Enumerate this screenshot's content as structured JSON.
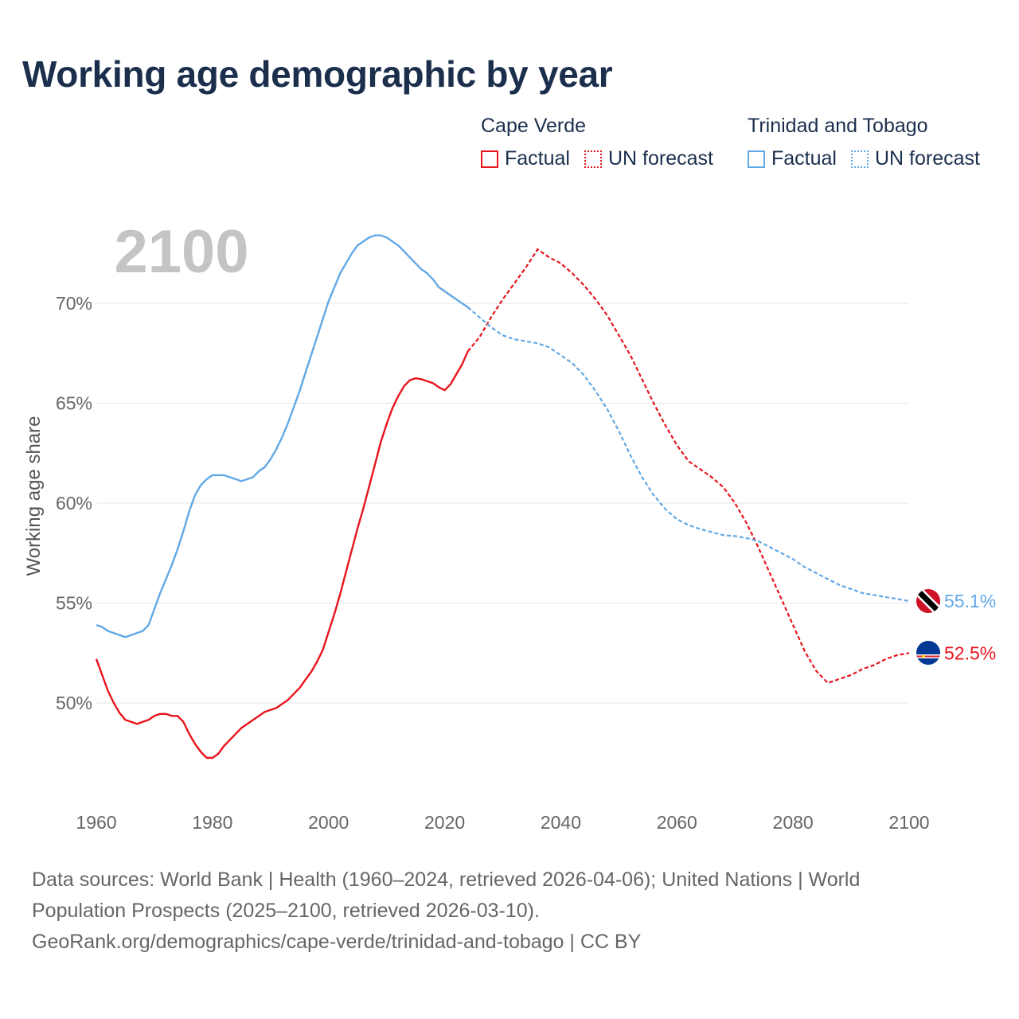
{
  "title": "Working age demographic by year",
  "legend": {
    "groups": [
      {
        "name": "Cape Verde",
        "factual_label": "Factual",
        "forecast_label": "UN forecast",
        "color": "#e8141c"
      },
      {
        "name": "Trinidad and Tobago",
        "factual_label": "Factual",
        "forecast_label": "UN forecast",
        "color": "#62a8e5"
      }
    ]
  },
  "year_label": "2100",
  "footer": {
    "line1": "Data sources: World Bank | Health (1960–2024, retrieved 2026-04-06); United Nations | World",
    "line2": "Population Prospects (2025–2100, retrieved 2026-03-10).",
    "line3": "GeoRank.org/demographics/cape-verde/trinidad-and-tobago | CC BY"
  },
  "chart_data": {
    "type": "line",
    "title": "Working age demographic by year",
    "xlabel": "",
    "ylabel": "Working age share",
    "xlim": [
      1960,
      2100
    ],
    "ylim": [
      46,
      74
    ],
    "x_ticks": [
      "1960",
      "1980",
      "2000",
      "2020",
      "2040",
      "2060",
      "2080",
      "2100"
    ],
    "y_ticks": [
      "50%",
      "55%",
      "60%",
      "65%",
      "70%"
    ],
    "grid": true,
    "factual_range": [
      1960,
      2024
    ],
    "forecast_range": [
      2024,
      2100
    ],
    "series": [
      {
        "name": "Cape Verde",
        "color": "#e8141c",
        "end_label": "52.5%",
        "points": [
          [
            1960,
            52.2
          ],
          [
            1961,
            51.4
          ],
          [
            1962,
            50.6
          ],
          [
            1963,
            50.0
          ],
          [
            1964,
            49.5
          ],
          [
            1965,
            49.15
          ],
          [
            1966,
            49.05
          ],
          [
            1967,
            48.95
          ],
          [
            1968,
            49.05
          ],
          [
            1969,
            49.15
          ],
          [
            1970,
            49.35
          ],
          [
            1971,
            49.45
          ],
          [
            1972,
            49.45
          ],
          [
            1973,
            49.35
          ],
          [
            1974,
            49.35
          ],
          [
            1975,
            49.05
          ],
          [
            1976,
            48.45
          ],
          [
            1977,
            47.95
          ],
          [
            1978,
            47.55
          ],
          [
            1979,
            47.25
          ],
          [
            1980,
            47.25
          ],
          [
            1981,
            47.45
          ],
          [
            1982,
            47.85
          ],
          [
            1983,
            48.15
          ],
          [
            1984,
            48.45
          ],
          [
            1985,
            48.75
          ],
          [
            1986,
            48.95
          ],
          [
            1987,
            49.15
          ],
          [
            1988,
            49.35
          ],
          [
            1989,
            49.55
          ],
          [
            1990,
            49.65
          ],
          [
            1991,
            49.75
          ],
          [
            1992,
            49.95
          ],
          [
            1993,
            50.15
          ],
          [
            1994,
            50.45
          ],
          [
            1995,
            50.75
          ],
          [
            1996,
            51.15
          ],
          [
            1997,
            51.55
          ],
          [
            1998,
            52.05
          ],
          [
            1999,
            52.65
          ],
          [
            2000,
            53.55
          ],
          [
            2001,
            54.45
          ],
          [
            2002,
            55.45
          ],
          [
            2003,
            56.55
          ],
          [
            2004,
            57.65
          ],
          [
            2005,
            58.75
          ],
          [
            2006,
            59.75
          ],
          [
            2007,
            60.85
          ],
          [
            2008,
            61.95
          ],
          [
            2009,
            63.05
          ],
          [
            2010,
            63.95
          ],
          [
            2011,
            64.75
          ],
          [
            2012,
            65.35
          ],
          [
            2013,
            65.85
          ],
          [
            2014,
            66.15
          ],
          [
            2015,
            66.25
          ],
          [
            2016,
            66.2
          ],
          [
            2017,
            66.1
          ],
          [
            2018,
            66.0
          ],
          [
            2019,
            65.8
          ],
          [
            2020,
            65.65
          ],
          [
            2021,
            65.95
          ],
          [
            2022,
            66.45
          ],
          [
            2023,
            66.95
          ],
          [
            2024,
            67.6
          ],
          [
            2026,
            68.3
          ],
          [
            2028,
            69.3
          ],
          [
            2030,
            70.2
          ],
          [
            2032,
            71.0
          ],
          [
            2034,
            71.8
          ],
          [
            2036,
            72.7
          ],
          [
            2038,
            72.3
          ],
          [
            2040,
            72.0
          ],
          [
            2042,
            71.5
          ],
          [
            2044,
            70.9
          ],
          [
            2046,
            70.2
          ],
          [
            2048,
            69.4
          ],
          [
            2050,
            68.4
          ],
          [
            2052,
            67.4
          ],
          [
            2054,
            66.2
          ],
          [
            2056,
            65.0
          ],
          [
            2058,
            63.9
          ],
          [
            2060,
            62.9
          ],
          [
            2062,
            62.1
          ],
          [
            2064,
            61.7
          ],
          [
            2066,
            61.3
          ],
          [
            2068,
            60.8
          ],
          [
            2070,
            60.0
          ],
          [
            2072,
            59.0
          ],
          [
            2074,
            57.8
          ],
          [
            2076,
            56.5
          ],
          [
            2078,
            55.2
          ],
          [
            2080,
            53.9
          ],
          [
            2082,
            52.6
          ],
          [
            2084,
            51.6
          ],
          [
            2086,
            51.0
          ],
          [
            2088,
            51.2
          ],
          [
            2090,
            51.4
          ],
          [
            2092,
            51.7
          ],
          [
            2094,
            51.9
          ],
          [
            2096,
            52.2
          ],
          [
            2098,
            52.4
          ],
          [
            2100,
            52.5
          ]
        ]
      },
      {
        "name": "Trinidad and Tobago",
        "color": "#62a8e5",
        "end_label": "55.1%",
        "points": [
          [
            1960,
            53.9
          ],
          [
            1961,
            53.8
          ],
          [
            1962,
            53.6
          ],
          [
            1963,
            53.5
          ],
          [
            1964,
            53.4
          ],
          [
            1965,
            53.3
          ],
          [
            1966,
            53.4
          ],
          [
            1967,
            53.5
          ],
          [
            1968,
            53.6
          ],
          [
            1969,
            53.9
          ],
          [
            1970,
            54.7
          ],
          [
            1971,
            55.5
          ],
          [
            1972,
            56.2
          ],
          [
            1973,
            56.9
          ],
          [
            1974,
            57.7
          ],
          [
            1975,
            58.6
          ],
          [
            1976,
            59.6
          ],
          [
            1977,
            60.4
          ],
          [
            1978,
            60.9
          ],
          [
            1979,
            61.2
          ],
          [
            1980,
            61.4
          ],
          [
            1981,
            61.4
          ],
          [
            1982,
            61.4
          ],
          [
            1983,
            61.3
          ],
          [
            1984,
            61.2
          ],
          [
            1985,
            61.1
          ],
          [
            1986,
            61.2
          ],
          [
            1987,
            61.3
          ],
          [
            1988,
            61.6
          ],
          [
            1989,
            61.8
          ],
          [
            1990,
            62.2
          ],
          [
            1991,
            62.7
          ],
          [
            1992,
            63.3
          ],
          [
            1993,
            64.0
          ],
          [
            1994,
            64.8
          ],
          [
            1995,
            65.6
          ],
          [
            1996,
            66.5
          ],
          [
            1997,
            67.4
          ],
          [
            1998,
            68.3
          ],
          [
            1999,
            69.2
          ],
          [
            2000,
            70.1
          ],
          [
            2001,
            70.8
          ],
          [
            2002,
            71.5
          ],
          [
            2003,
            72.0
          ],
          [
            2004,
            72.5
          ],
          [
            2005,
            72.9
          ],
          [
            2006,
            73.1
          ],
          [
            2007,
            73.3
          ],
          [
            2008,
            73.4
          ],
          [
            2009,
            73.4
          ],
          [
            2010,
            73.3
          ],
          [
            2011,
            73.1
          ],
          [
            2012,
            72.9
          ],
          [
            2013,
            72.6
          ],
          [
            2014,
            72.3
          ],
          [
            2015,
            72.0
          ],
          [
            2016,
            71.7
          ],
          [
            2017,
            71.5
          ],
          [
            2018,
            71.2
          ],
          [
            2019,
            70.8
          ],
          [
            2020,
            70.6
          ],
          [
            2021,
            70.4
          ],
          [
            2022,
            70.2
          ],
          [
            2023,
            70.0
          ],
          [
            2024,
            69.8
          ],
          [
            2026,
            69.3
          ],
          [
            2028,
            68.8
          ],
          [
            2030,
            68.4
          ],
          [
            2032,
            68.2
          ],
          [
            2034,
            68.1
          ],
          [
            2036,
            68.0
          ],
          [
            2038,
            67.8
          ],
          [
            2040,
            67.4
          ],
          [
            2042,
            67.0
          ],
          [
            2044,
            66.4
          ],
          [
            2046,
            65.6
          ],
          [
            2048,
            64.7
          ],
          [
            2050,
            63.6
          ],
          [
            2052,
            62.4
          ],
          [
            2054,
            61.3
          ],
          [
            2056,
            60.4
          ],
          [
            2058,
            59.7
          ],
          [
            2060,
            59.2
          ],
          [
            2062,
            58.9
          ],
          [
            2064,
            58.7
          ],
          [
            2066,
            58.55
          ],
          [
            2068,
            58.4
          ],
          [
            2070,
            58.35
          ],
          [
            2072,
            58.25
          ],
          [
            2074,
            58.1
          ],
          [
            2076,
            57.8
          ],
          [
            2078,
            57.5
          ],
          [
            2080,
            57.2
          ],
          [
            2082,
            56.8
          ],
          [
            2084,
            56.5
          ],
          [
            2086,
            56.2
          ],
          [
            2088,
            55.9
          ],
          [
            2090,
            55.7
          ],
          [
            2092,
            55.5
          ],
          [
            2094,
            55.4
          ],
          [
            2096,
            55.3
          ],
          [
            2098,
            55.2
          ],
          [
            2100,
            55.1
          ]
        ]
      }
    ]
  }
}
